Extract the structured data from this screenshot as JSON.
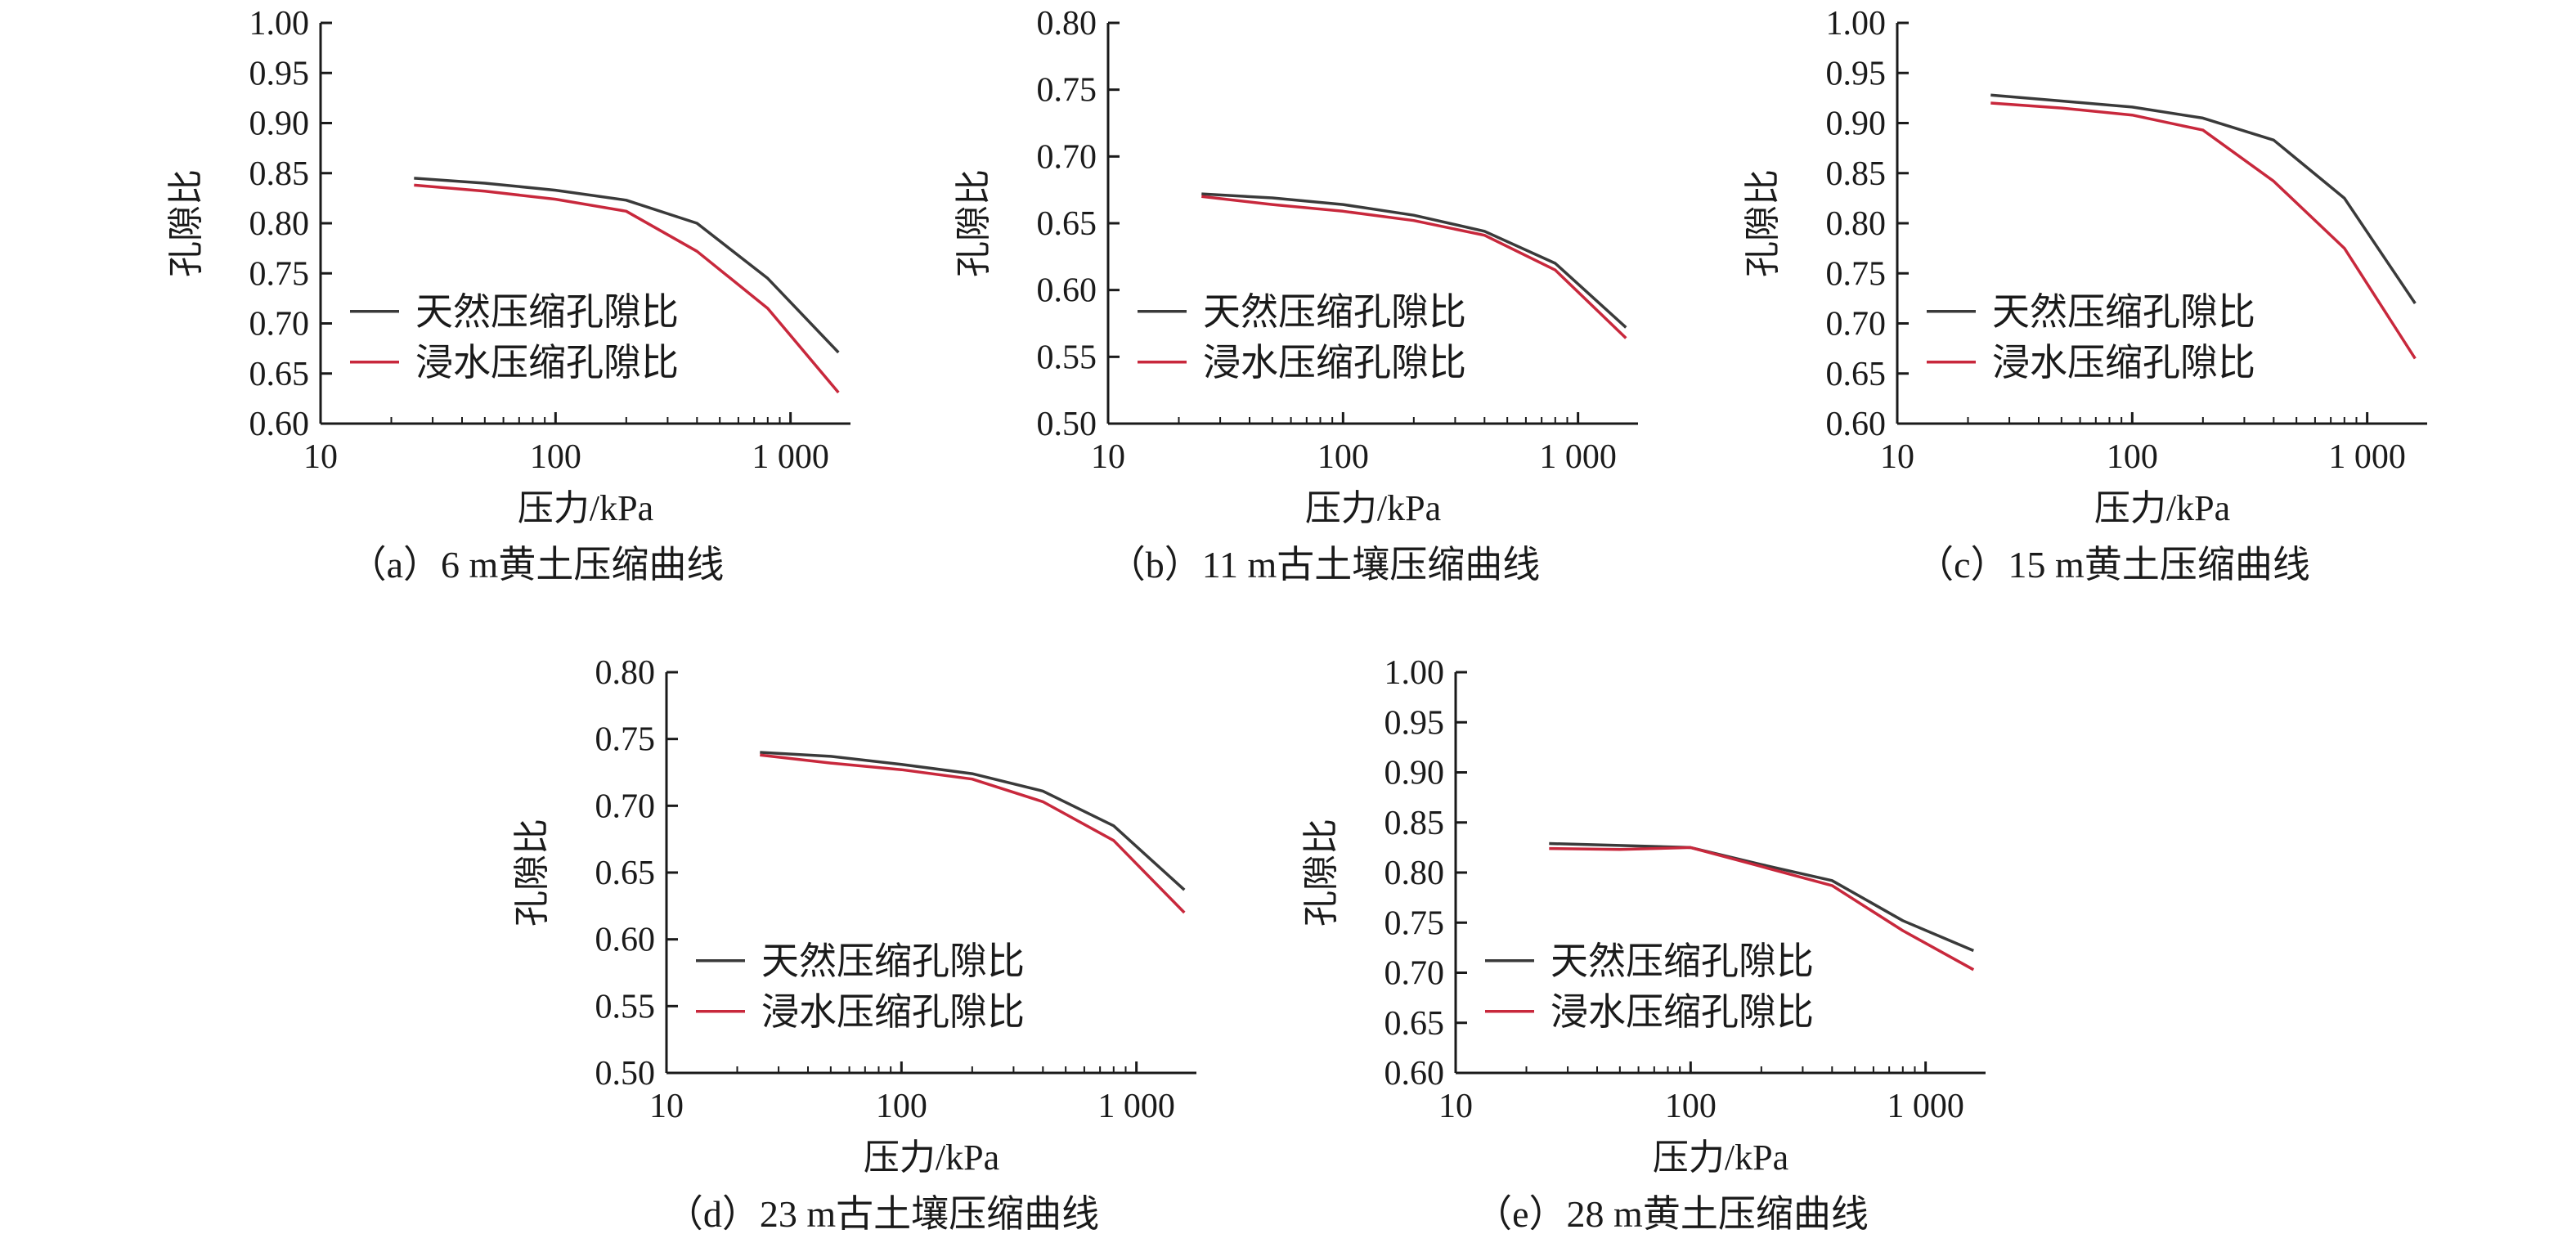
{
  "colors": {
    "natural": "#3a3a3a",
    "soaked": "#c8283c",
    "axis": "#1a1a1a"
  },
  "chart_data": [
    {
      "type": "line",
      "caption": "（a）6 m黄土压缩曲线",
      "xlabel": "压力/kPa",
      "ylabel": "孔隙比",
      "xscale": "log",
      "xlim": [
        10,
        1800
      ],
      "ylim": [
        0.6,
        1.0
      ],
      "xticks": [
        10,
        100,
        1000
      ],
      "xtick_labels": [
        "10",
        "100",
        "1 000"
      ],
      "yticks": [
        0.6,
        0.65,
        0.7,
        0.75,
        0.8,
        0.85,
        0.9,
        0.95,
        1.0
      ],
      "ytick_labels": [
        "0.60",
        "0.65",
        "0.70",
        "0.75",
        "0.80",
        "0.85",
        "0.90",
        "0.95",
        "1.00"
      ],
      "legend": "center-left",
      "x": [
        25,
        50,
        100,
        200,
        400,
        800,
        1600
      ],
      "series": [
        {
          "name": "天然压缩孔隙比",
          "color": "#3a3a3a",
          "values": [
            0.845,
            0.84,
            0.833,
            0.823,
            0.8,
            0.745,
            0.671
          ]
        },
        {
          "name": "浸水压缩孔隙比",
          "color": "#c8283c",
          "values": [
            0.838,
            0.832,
            0.824,
            0.812,
            0.772,
            0.715,
            0.631
          ]
        }
      ]
    },
    {
      "type": "line",
      "caption": "（b）11 m古土壤压缩曲线",
      "xlabel": "压力/kPa",
      "ylabel": "孔隙比",
      "xscale": "log",
      "xlim": [
        10,
        1800
      ],
      "ylim": [
        0.5,
        0.8
      ],
      "xticks": [
        10,
        100,
        1000
      ],
      "xtick_labels": [
        "10",
        "100",
        "1 000"
      ],
      "yticks": [
        0.5,
        0.55,
        0.6,
        0.65,
        0.7,
        0.75,
        0.8
      ],
      "ytick_labels": [
        "0.50",
        "0.55",
        "0.60",
        "0.65",
        "0.70",
        "0.75",
        "0.80"
      ],
      "legend": "center-left",
      "x": [
        25,
        50,
        100,
        200,
        400,
        800,
        1600
      ],
      "series": [
        {
          "name": "天然压缩孔隙比",
          "color": "#3a3a3a",
          "values": [
            0.672,
            0.669,
            0.664,
            0.656,
            0.644,
            0.62,
            0.572
          ]
        },
        {
          "name": "浸水压缩孔隙比",
          "color": "#c8283c",
          "values": [
            0.67,
            0.664,
            0.659,
            0.652,
            0.641,
            0.615,
            0.564
          ]
        }
      ]
    },
    {
      "type": "line",
      "caption": "（c）15 m黄土压缩曲线",
      "xlabel": "压力/kPa",
      "ylabel": "孔隙比",
      "xscale": "log",
      "xlim": [
        10,
        1800
      ],
      "ylim": [
        0.6,
        1.0
      ],
      "xticks": [
        10,
        100,
        1000
      ],
      "xtick_labels": [
        "10",
        "100",
        "1 000"
      ],
      "yticks": [
        0.6,
        0.65,
        0.7,
        0.75,
        0.8,
        0.85,
        0.9,
        0.95,
        1.0
      ],
      "ytick_labels": [
        "0.60",
        "0.65",
        "0.70",
        "0.75",
        "0.80",
        "0.85",
        "0.90",
        "0.95",
        "1.00"
      ],
      "legend": "center-left",
      "x": [
        25,
        50,
        100,
        200,
        400,
        800,
        1600
      ],
      "series": [
        {
          "name": "天然压缩孔隙比",
          "color": "#3a3a3a",
          "values": [
            0.928,
            0.922,
            0.916,
            0.905,
            0.883,
            0.825,
            0.72
          ]
        },
        {
          "name": "浸水压缩孔隙比",
          "color": "#c8283c",
          "values": [
            0.92,
            0.915,
            0.908,
            0.893,
            0.842,
            0.775,
            0.665
          ]
        }
      ]
    },
    {
      "type": "line",
      "caption": "（d）23 m古土壤压缩曲线",
      "xlabel": "压力/kPa",
      "ylabel": "孔隙比",
      "xscale": "log",
      "xlim": [
        10,
        1800
      ],
      "ylim": [
        0.5,
        0.8
      ],
      "xticks": [
        10,
        100,
        1000
      ],
      "xtick_labels": [
        "10",
        "100",
        "1 000"
      ],
      "yticks": [
        0.5,
        0.55,
        0.6,
        0.65,
        0.7,
        0.75,
        0.8
      ],
      "ytick_labels": [
        "0.50",
        "0.55",
        "0.60",
        "0.65",
        "0.70",
        "0.75",
        "0.80"
      ],
      "legend": "center-left",
      "x": [
        25,
        50,
        100,
        200,
        400,
        800,
        1600
      ],
      "series": [
        {
          "name": "天然压缩孔隙比",
          "color": "#3a3a3a",
          "values": [
            0.74,
            0.737,
            0.731,
            0.724,
            0.711,
            0.685,
            0.637
          ]
        },
        {
          "name": "浸水压缩孔隙比",
          "color": "#c8283c",
          "values": [
            0.738,
            0.732,
            0.727,
            0.72,
            0.703,
            0.674,
            0.62
          ]
        }
      ]
    },
    {
      "type": "line",
      "caption": "（e）28 m黄土压缩曲线",
      "xlabel": "压力/kPa",
      "ylabel": "孔隙比",
      "xscale": "log",
      "xlim": [
        10,
        1800
      ],
      "ylim": [
        0.6,
        1.0
      ],
      "xticks": [
        10,
        100,
        1000
      ],
      "xtick_labels": [
        "10",
        "100",
        "1 000"
      ],
      "yticks": [
        0.6,
        0.65,
        0.7,
        0.75,
        0.8,
        0.85,
        0.9,
        0.95,
        1.0
      ],
      "ytick_labels": [
        "0.60",
        "0.65",
        "0.70",
        "0.75",
        "0.80",
        "0.85",
        "0.90",
        "0.95",
        "1.00"
      ],
      "legend": "center-left",
      "x": [
        25,
        50,
        100,
        200,
        400,
        800,
        1600
      ],
      "series": [
        {
          "name": "天然压缩孔隙比",
          "color": "#3a3a3a",
          "values": [
            0.829,
            0.827,
            0.825,
            0.808,
            0.792,
            0.752,
            0.722
          ]
        },
        {
          "name": "浸水压缩孔隙比",
          "color": "#c8283c",
          "values": [
            0.824,
            0.823,
            0.825,
            0.806,
            0.787,
            0.742,
            0.703
          ]
        }
      ]
    }
  ]
}
